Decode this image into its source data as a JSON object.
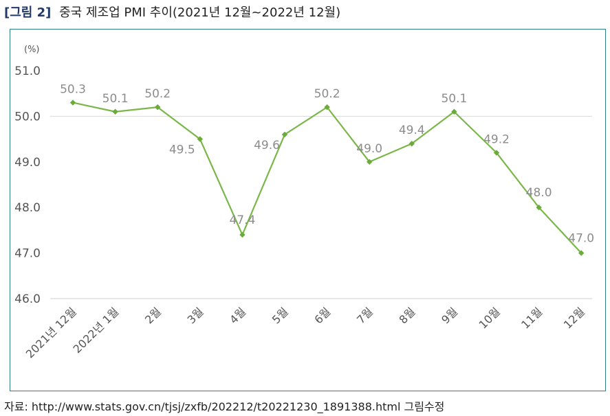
{
  "figure": {
    "label": "[그림 2]",
    "title": "중국 제조업 PMI 추이(2021년 12월~2022년 12월)",
    "source": "자료: http://www.stats.gov.cn/tjsj/zxfb/202212/t20221230_1891388.html 그림수정"
  },
  "chart_data": {
    "type": "line",
    "title": "",
    "unit_label": "(%)",
    "xlabel": "",
    "ylabel": "",
    "categories": [
      "2021년 12월",
      "2022년 1월",
      "2월",
      "3월",
      "4월",
      "5월",
      "6월",
      "7월",
      "8월",
      "9월",
      "10월",
      "11월",
      "12월"
    ],
    "series": [
      {
        "values": [
          50.3,
          50.1,
          50.2,
          49.5,
          47.4,
          49.6,
          50.2,
          49.0,
          49.4,
          50.1,
          49.2,
          48.0,
          47.0
        ],
        "data_labels": [
          "50.3",
          "50.1",
          "50.2",
          "49.5",
          "47.4",
          "49.6",
          "50.2",
          "49.0",
          "49.4",
          "50.1",
          "49.2",
          "48.0",
          "47.0"
        ]
      }
    ],
    "yticks": [
      "51.0",
      "50.0",
      "49.0",
      "48.0",
      "47.0",
      "46.0"
    ],
    "ylim": [
      46.0,
      51.0
    ],
    "grid": "horizontal line at 50.0 only",
    "legend": "none",
    "colors": {
      "line": "#7ab648",
      "marker": "#6aab3a",
      "data_label": "#8c8c8c",
      "axis_text": "#555555",
      "gridline": "#d9d9d9"
    }
  }
}
